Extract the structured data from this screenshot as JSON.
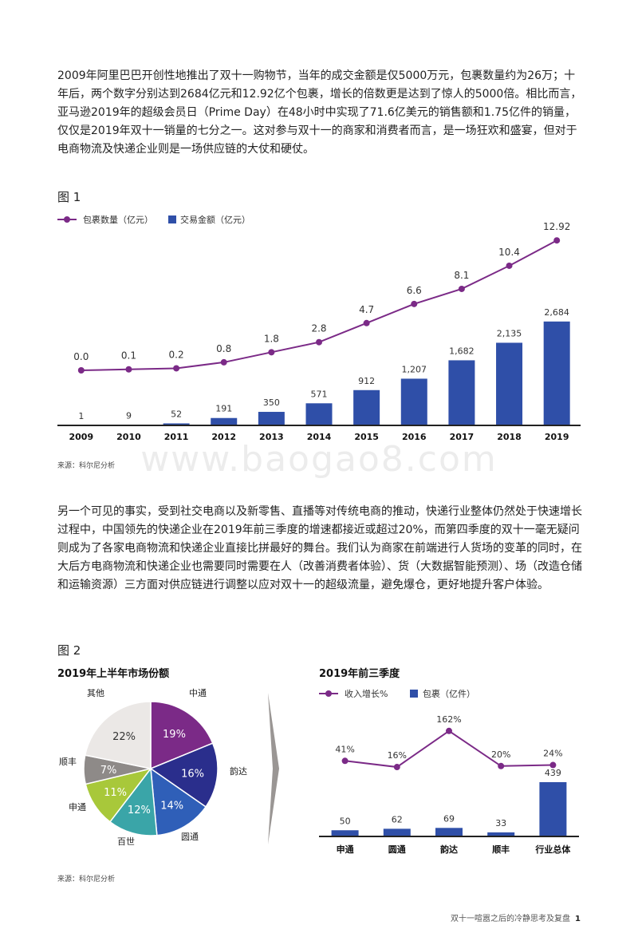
{
  "para1": "2009年阿里巴巴开创性地推出了双十一购物节，当年的成交金额是仅5000万元，包裹数量约为26万；十年后，两个数字分别达到2684亿元和12.92亿个包裹，增长的倍数更是达到了惊人的5000倍。相比而言，亚马逊2019年的超级会员日（Prime Day）在48小时中实现了71.6亿美元的销售额和1.75亿件的销量，仅仅是2019年双十一销量的七分之一。这对参与双十一的商家和消费者而言，是一场狂欢和盛宴，但对于电商物流及快递企业则是一场供应链的大仗和硬仗。",
  "para2": "另一个可见的事实，受到社交电商以及新零售、直播等对传统电商的推动，快递行业整体仍然处于快速增长过程中，中国领先的快递企业在2019年前三季度的增速都接近或超过20%，而第四季度的双十一毫无疑问则成为了各家电商物流和快递企业直接比拼最好的舞台。我们认为商家在前端进行人货场的变革的同时，在大后方电商物流和快递企业也需要同时需要在人（改善消费者体验）、货（大数据智能预测）、场（改造仓储和运输资源）三方面对供应链进行调整以应对双十一的超级流量，避免爆仓，更好地提升客户体验。",
  "fig1_label": "图 1",
  "fig2_label": "图 2",
  "source1": "来源：科尔尼分析",
  "source2": "来源：科尔尼分析",
  "watermark": "www.baogao8.com",
  "footer_text": "双十一喧嚣之后的冷静思考及复盘",
  "page_number": "1",
  "colors": {
    "purple": "#7b2a87",
    "blue": "#2f4fa8",
    "axis": "#222222"
  },
  "chart_data": [
    {
      "type": "bar",
      "categories": [
        "2009",
        "2010",
        "2011",
        "2012",
        "2013",
        "2014",
        "2015",
        "2016",
        "2017",
        "2018",
        "2019"
      ],
      "series": [
        {
          "name": "包裹数量（亿元）",
          "type": "line",
          "values": [
            0.0,
            0.1,
            0.2,
            0.8,
            1.8,
            2.8,
            4.7,
            6.6,
            8.1,
            10.4,
            12.92
          ],
          "labels": [
            "0.0",
            "0.1",
            "0.2",
            "0.8",
            "1.8",
            "2.8",
            "4.7",
            "6.6",
            "8.1",
            "10.4",
            "12.92"
          ]
        },
        {
          "name": "交易金额（亿元）",
          "type": "bar",
          "values": [
            1,
            9,
            52,
            191,
            350,
            571,
            912,
            1207,
            1682,
            2135,
            2684
          ],
          "labels": [
            "1",
            "9",
            "52",
            "191",
            "350",
            "571",
            "912",
            "1,207",
            "1,682",
            "2,135",
            "2,684"
          ]
        }
      ]
    },
    {
      "type": "pie",
      "title": "2019年上半年市场份额",
      "slices": [
        {
          "name": "中通",
          "value": 19,
          "label": "19%",
          "color": "#7b2a87"
        },
        {
          "name": "韵达",
          "value": 16,
          "label": "16%",
          "color": "#2a2e8c"
        },
        {
          "name": "圆通",
          "value": 14,
          "label": "14%",
          "color": "#2f5fb8"
        },
        {
          "name": "百世",
          "value": 12,
          "label": "12%",
          "color": "#3aa5a8"
        },
        {
          "name": "申通",
          "value": 11,
          "label": "11%",
          "color": "#a8c83a"
        },
        {
          "name": "顺丰",
          "value": 7,
          "label": "7%",
          "color": "#8e8a88"
        },
        {
          "name": "其他",
          "value": 22,
          "label": "22%",
          "color": "#ebe8e6"
        }
      ]
    },
    {
      "type": "bar",
      "title": "2019年前三季度",
      "categories": [
        "申通",
        "圆通",
        "韵达",
        "顺丰",
        "行业总体"
      ],
      "series": [
        {
          "name": "收入增长%",
          "type": "line",
          "values": [
            41,
            16,
            162,
            20,
            24
          ],
          "labels": [
            "41%",
            "16%",
            "162%",
            "20%",
            "24%"
          ]
        },
        {
          "name": "包裹（亿件）",
          "type": "bar",
          "values": [
            50,
            62,
            69,
            33,
            439
          ],
          "labels": [
            "50",
            "62",
            "69",
            "33",
            "439"
          ]
        }
      ]
    }
  ]
}
